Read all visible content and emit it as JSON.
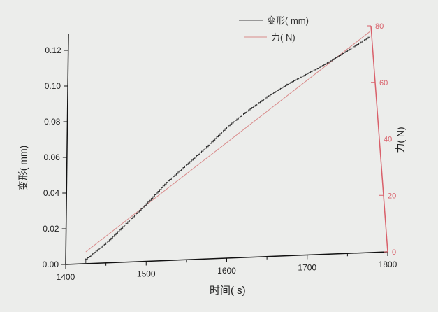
{
  "chart_data": {
    "type": "line",
    "title": "",
    "xlabel": "时间( s)",
    "ylabel": "变形( mm)",
    "y2label": "力( N)",
    "xlim": [
      1400,
      1800
    ],
    "ylim": [
      0,
      0.125
    ],
    "y2lim": [
      0,
      80
    ],
    "xticks": [
      "1400",
      "1500",
      "1600",
      "1700",
      "1800"
    ],
    "yticks": [
      "0.00",
      "0.02",
      "0.04",
      "0.06",
      "0.08",
      "0.10",
      "0.12"
    ],
    "y2ticks": [
      "0",
      "20",
      "40",
      "60",
      "80"
    ],
    "legend_position": "top-right",
    "grid": false,
    "colors": {
      "deformation": "#333333",
      "force": "#d98a8a",
      "right_axis": "#d9606a"
    },
    "series": [
      {
        "name": "变形( mm)",
        "axis": "left",
        "x": [
          1425,
          1450,
          1475,
          1500,
          1525,
          1550,
          1575,
          1600,
          1625,
          1650,
          1675,
          1700,
          1725,
          1750,
          1778
        ],
        "y": [
          0.003,
          0.012,
          0.023,
          0.034,
          0.046,
          0.056,
          0.066,
          0.077,
          0.086,
          0.094,
          0.101,
          0.107,
          0.113,
          0.12,
          0.128
        ]
      },
      {
        "name": "力( N)",
        "axis": "right",
        "x": [
          1425,
          1778
        ],
        "y": [
          0,
          78
        ]
      }
    ]
  }
}
